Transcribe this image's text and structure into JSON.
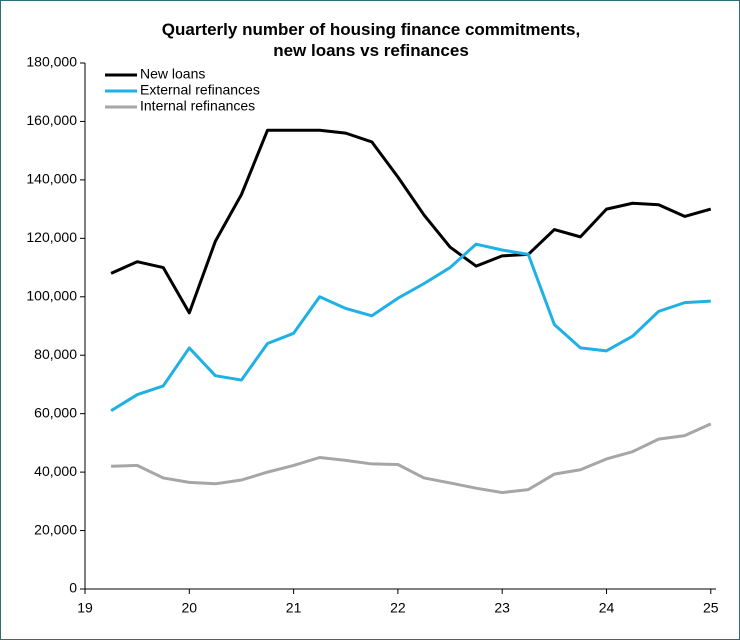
{
  "chart_data": {
    "type": "line",
    "title": "Quarterly number of housing finance commitments, new loans vs refinances",
    "x": [
      19.25,
      19.5,
      19.75,
      20.0,
      20.25,
      20.5,
      20.75,
      21.0,
      21.25,
      21.5,
      21.75,
      22.0,
      22.25,
      22.5,
      22.75,
      23.0,
      23.25,
      23.5,
      23.75,
      24.0,
      24.25,
      24.5,
      24.75,
      25.0
    ],
    "series": [
      {
        "name": "New loans",
        "color": "#000000",
        "values": [
          108000,
          112000,
          110000,
          94500,
          119000,
          135000,
          157000,
          157000,
          157000,
          156000,
          153000,
          141000,
          128000,
          117000,
          110500,
          114000,
          114500,
          123000,
          120500,
          130000,
          132000,
          131500,
          127500,
          130000
        ]
      },
      {
        "name": "External refinances",
        "color": "#1fb1e6",
        "values": [
          61000,
          66500,
          69500,
          82500,
          73000,
          71500,
          84000,
          87500,
          100000,
          96000,
          93500,
          99500,
          104500,
          110000,
          118000,
          116000,
          114500,
          90500,
          82500,
          81500,
          86500,
          95000,
          98000,
          98500
        ]
      },
      {
        "name": "Internal refinances",
        "color": "#a6a6a6",
        "values": [
          42000,
          42300,
          38000,
          36500,
          36000,
          37300,
          40000,
          42300,
          45000,
          44000,
          42800,
          42600,
          38000,
          36300,
          34500,
          33000,
          34000,
          39300,
          40800,
          44500,
          47000,
          51300,
          52500,
          56500
        ]
      }
    ],
    "xlim": [
      19,
      25.05
    ],
    "xticks": [
      19,
      20,
      21,
      22,
      23,
      24,
      25
    ],
    "ylim": [
      0,
      180000
    ],
    "yticks": [
      0,
      {
        "value": 20000,
        "label": "20,000"
      },
      {
        "value": 40000,
        "label": "40,000"
      },
      {
        "value": 60000,
        "label": "60,000"
      },
      {
        "value": 80000,
        "label": "80,000"
      },
      {
        "value": 100000,
        "label": "100,000"
      },
      {
        "value": 120000,
        "label": "120,000"
      },
      {
        "value": 140000,
        "label": "140,000"
      },
      {
        "value": 160000,
        "label": "160,000"
      },
      {
        "value": 180000,
        "label": "180,000"
      }
    ],
    "legend": "top-left"
  }
}
